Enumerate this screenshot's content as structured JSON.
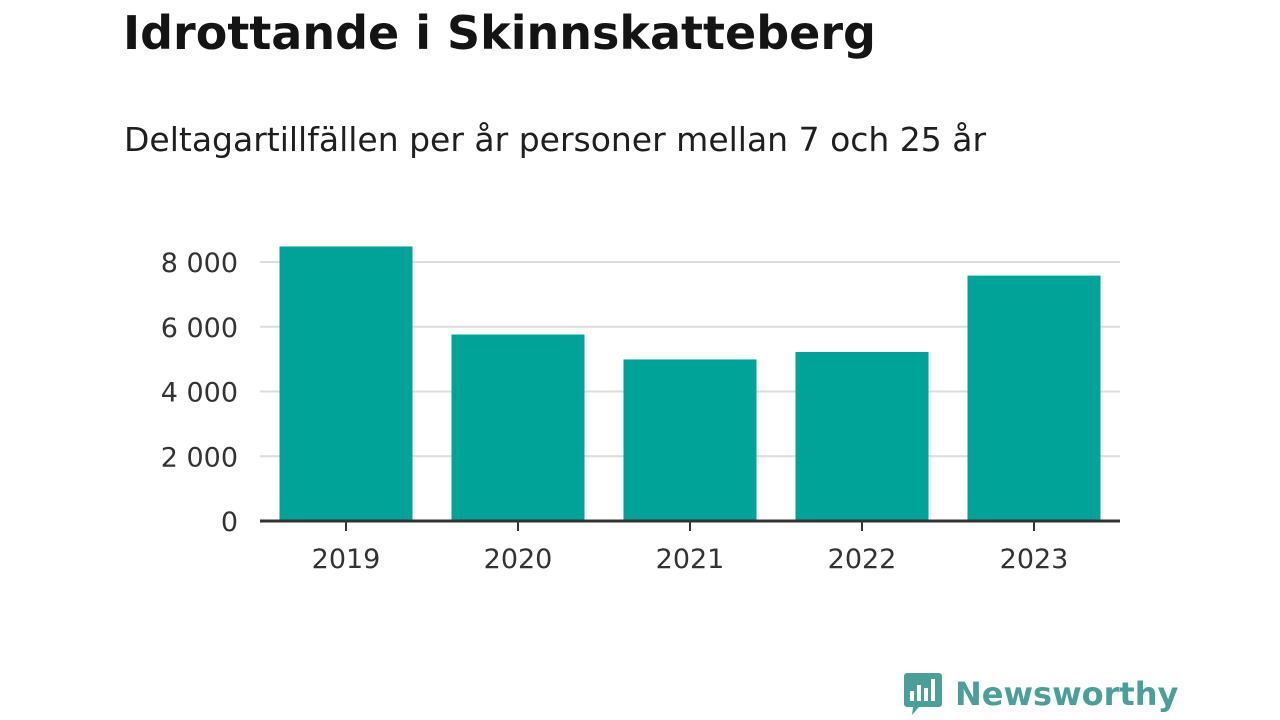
{
  "title": "Idrottande i Skinnskatteberg",
  "subtitle": "Deltagartillfällen per år personer mellan 7 och 25 år",
  "brand": {
    "name": "Newsworthy",
    "color": "#4a9f98",
    "icon": "bar-chart-speech-bubble-icon"
  },
  "chart_data": {
    "type": "bar",
    "categories": [
      "2019",
      "2020",
      "2021",
      "2022",
      "2023"
    ],
    "values": [
      8480,
      5760,
      4990,
      5220,
      7580
    ],
    "ylim": [
      0,
      8000
    ],
    "yticks": [
      0,
      2000,
      4000,
      6000,
      8000
    ],
    "ytick_labels": [
      "0",
      "2 000",
      "4 000",
      "6 000",
      "8 000"
    ],
    "bar_color": "#00a398",
    "grid": true,
    "legend": "none"
  }
}
